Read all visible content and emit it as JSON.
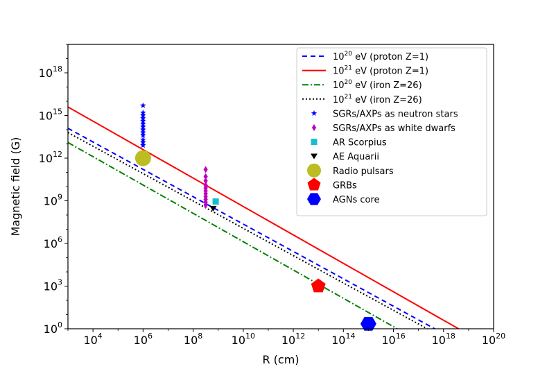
{
  "chart_data": {
    "type": "scatter",
    "title": "",
    "xlabel": "R (cm)",
    "ylabel": "Magnetic field (G)",
    "xscale": "log",
    "yscale": "log",
    "xlim_exp": [
      3,
      20
    ],
    "ylim_exp": [
      0,
      20
    ],
    "x_ticks": [
      {
        "base": "10",
        "exp": "4"
      },
      {
        "base": "10",
        "exp": "6"
      },
      {
        "base": "10",
        "exp": "8"
      },
      {
        "base": "10",
        "exp": "10"
      },
      {
        "base": "10",
        "exp": "12"
      },
      {
        "base": "10",
        "exp": "14"
      },
      {
        "base": "10",
        "exp": "16"
      },
      {
        "base": "10",
        "exp": "18"
      },
      {
        "base": "10",
        "exp": "20"
      }
    ],
    "y_ticks": [
      {
        "base": "10",
        "exp": "0"
      },
      {
        "base": "10",
        "exp": "3"
      },
      {
        "base": "10",
        "exp": "6"
      },
      {
        "base": "10",
        "exp": "9"
      },
      {
        "base": "10",
        "exp": "12"
      },
      {
        "base": "10",
        "exp": "15"
      },
      {
        "base": "10",
        "exp": "18"
      }
    ],
    "grid": false,
    "legend_position": "top-right",
    "lines": [
      {
        "label_pre": "10",
        "label_sup": "20",
        "label_post": " eV (proton Z=1)",
        "color": "#0000ff",
        "dash": "7,5",
        "log_x": [
          3,
          17.65
        ],
        "log_y": [
          14.1,
          0
        ]
      },
      {
        "label_pre": "10",
        "label_sup": "21",
        "label_post": " eV (proton Z=1)",
        "color": "#ff0000",
        "dash": "",
        "log_x": [
          3,
          18.6
        ],
        "log_y": [
          15.6,
          0
        ]
      },
      {
        "label_pre": "10",
        "label_sup": "20",
        "label_post": " eV (iron Z=26)",
        "color": "#008000",
        "dash": "9,3,2,3",
        "log_x": [
          3,
          16.15
        ],
        "log_y": [
          13.1,
          0
        ]
      },
      {
        "label_pre": "10",
        "label_sup": "21",
        "label_post": " eV (iron Z=26)",
        "color": "#000000",
        "dash": "2,3",
        "log_x": [
          3,
          17.35
        ],
        "log_y": [
          13.8,
          0
        ]
      }
    ],
    "point_series": [
      {
        "label": "SGRs/AXPs as neutron stars",
        "color": "#0000ff",
        "marker": "star",
        "size": 9,
        "log_x": [
          6,
          6,
          6,
          6,
          6,
          6,
          6,
          6,
          6,
          6,
          6,
          6,
          6
        ],
        "log_y": [
          15.7,
          15.2,
          15.0,
          14.8,
          14.6,
          14.4,
          14.2,
          14.0,
          13.8,
          13.6,
          13.3,
          13.1,
          12.9
        ]
      },
      {
        "label": "SGRs/AXPs as white dwarfs",
        "color": "#c000c0",
        "marker": "diamond",
        "size": 10,
        "log_x": [
          8.5,
          8.5,
          8.5,
          8.5,
          8.5,
          8.5,
          8.5,
          8.5,
          8.5,
          8.5,
          8.5
        ],
        "log_y": [
          11.2,
          10.7,
          10.4,
          10.1,
          9.9,
          9.7,
          9.5,
          9.3,
          9.1,
          8.9,
          8.7
        ]
      },
      {
        "label": "AR Scorpius",
        "color": "#17becf",
        "marker": "square",
        "size": 10,
        "log_x": [
          8.9
        ],
        "log_y": [
          8.95
        ]
      },
      {
        "label": "AE Aquarii",
        "color": "#000000",
        "marker": "triangle-down",
        "size": 10,
        "log_x": [
          8.8
        ],
        "log_y": [
          8.45
        ]
      },
      {
        "label": "Radio pulsars",
        "color": "#bcbd22",
        "marker": "circle",
        "size": 23,
        "log_x": [
          6
        ],
        "log_y": [
          12
        ]
      },
      {
        "label": "GRBs",
        "color": "#ff0000",
        "marker": "pentagon",
        "size": 22,
        "log_x": [
          13
        ],
        "log_y": [
          3
        ]
      },
      {
        "label": "AGNs core",
        "color": "#0000ff",
        "marker": "hexagon",
        "size": 23,
        "log_x": [
          15
        ],
        "log_y": [
          0.35
        ]
      }
    ]
  }
}
